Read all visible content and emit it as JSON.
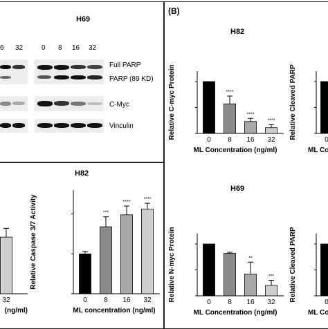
{
  "panel_b_label": "(B)",
  "western_blot": {
    "title": "H69",
    "left_lanes": [
      "6",
      "32"
    ],
    "right_lanes": [
      "0",
      "8",
      "16",
      "32"
    ],
    "rows": [
      "Full PARP",
      "PARP (89 KD)",
      "C-Myc",
      "Vinculin"
    ]
  },
  "caspase_section_title": "H82",
  "h82_title": "H82",
  "h69_title": "H69",
  "chart_data": [
    {
      "id": "h82_cmyc",
      "type": "bar",
      "title": "H82",
      "xlabel": "ML Concentration (ng/ml)",
      "ylabel": "Relative C-myc Protein",
      "categories": [
        "0",
        "8",
        "16",
        "32"
      ],
      "values": [
        1.0,
        0.57,
        0.23,
        0.11
      ],
      "errors": [
        0,
        0.15,
        0.06,
        0.06
      ],
      "significance": [
        "",
        "****",
        "****",
        "****"
      ],
      "ylim": [
        0,
        1.2
      ],
      "bar_colors": [
        "#000000",
        "#8a8a8a",
        "#a9a9a9",
        "#cfcfcf"
      ]
    },
    {
      "id": "h69_nmyc",
      "type": "bar",
      "title": "H69",
      "xlabel": "ML Concentration (ng/ml)",
      "ylabel": "Relative N-myc Protein",
      "categories": [
        "0",
        "8",
        "16",
        "32"
      ],
      "values": [
        1.0,
        0.82,
        0.42,
        0.2
      ],
      "errors": [
        0,
        0.02,
        0.23,
        0.1
      ],
      "significance": [
        "",
        "",
        "**",
        "***"
      ],
      "ylim": [
        0,
        1.2
      ],
      "bar_colors": [
        "#000000",
        "#8a8a8a",
        "#a9a9a9",
        "#cfcfcf"
      ]
    },
    {
      "id": "h82_caspase",
      "type": "bar",
      "xlabel": "ML concentration (ng/ml)",
      "ylabel": "Relative Caspase 3/7 Activity",
      "categories": [
        "0",
        "8",
        "16",
        "32"
      ],
      "values": [
        1.0,
        1.68,
        1.98,
        2.12
      ],
      "errors": [
        0.06,
        0.25,
        0.22,
        0.15
      ],
      "significance": [
        "",
        "***",
        "****",
        "****"
      ],
      "ylim": [
        0,
        2.6
      ],
      "bar_colors": [
        "#000000",
        "#8a8a8a",
        "#a9a9a9",
        "#cfcfcf"
      ]
    },
    {
      "id": "h82_cleaved_parp",
      "type": "bar",
      "xlabel": "ML Co",
      "ylabel": "Relative Cleaved PARP",
      "categories": [
        "0"
      ],
      "values": [
        1.0
      ],
      "ylim": [
        0,
        1.2
      ],
      "bar_colors": [
        "#000000"
      ]
    },
    {
      "id": "h69_cleaved_parp",
      "type": "bar",
      "xlabel": "ML Co",
      "ylabel": "Relative Cleaved PARP",
      "categories": [
        "0"
      ],
      "values": [
        1.0
      ],
      "ylim": [
        0,
        1.2
      ],
      "bar_colors": [
        "#000000"
      ]
    },
    {
      "id": "partial_left_bar",
      "type": "bar",
      "xlabel": "(ng/ml)",
      "categories": [
        "32"
      ],
      "values": [
        1.42
      ],
      "errors": [
        0.22
      ],
      "ylim": [
        0,
        2.6
      ],
      "bar_colors": [
        "#cfcfcf"
      ]
    }
  ]
}
